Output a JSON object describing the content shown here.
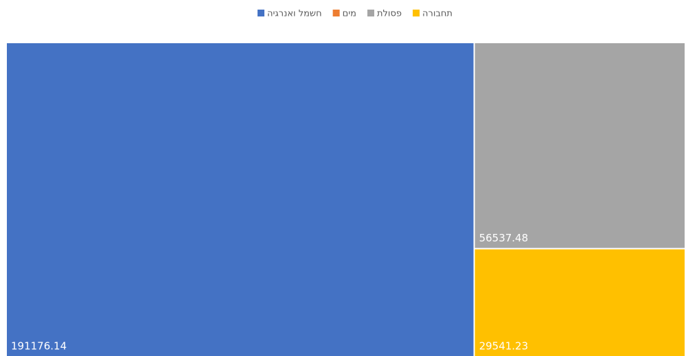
{
  "chart_data": {
    "type": "treemap",
    "series": [
      {
        "name": "חשמל ואנרגיה",
        "color": "#4472c4",
        "values": [
          191176.14
        ]
      },
      {
        "name": "מים",
        "color": "#ed7d31",
        "values": [
          null
        ]
      },
      {
        "name": "פסולת",
        "color": "#a5a5a5",
        "values": [
          56537.48
        ]
      },
      {
        "name": "תחבורה",
        "color": "#ffc000",
        "values": [
          29541.23
        ]
      }
    ]
  }
}
